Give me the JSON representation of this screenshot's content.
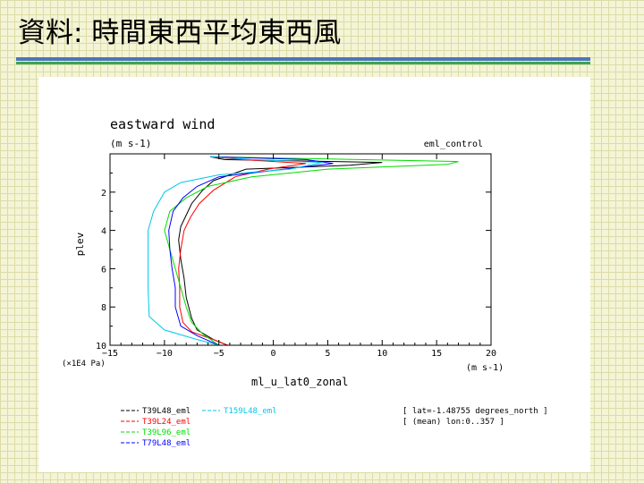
{
  "slide": {
    "title": "資料: 時間東西平均東西風"
  },
  "chart_data": {
    "type": "line",
    "title": "eastward wind",
    "units": "(m s-1)",
    "experiment": "eml_control",
    "xlabel": "ml_u_lat0_zonal",
    "xunits": "(m s-1)",
    "ylabel": "plev",
    "ylabel_scale": "(×1E4 Pa)",
    "xlim": [
      -15,
      20
    ],
    "ylim": [
      10,
      0
    ],
    "xticks": [
      -15,
      -10,
      -5,
      0,
      5,
      10,
      15,
      20
    ],
    "yticks": [
      2,
      4,
      6,
      8,
      10
    ],
    "info": [
      "[ lat=-1.48755 degrees_north ]",
      "[ (mean) lon:0..357 ]"
    ],
    "series": [
      {
        "name": "T39L48_eml",
        "color": "#000000",
        "points": [
          [
            -5.8,
            0.15
          ],
          [
            -4.5,
            0.3
          ],
          [
            10.0,
            0.45
          ],
          [
            7.0,
            0.6
          ],
          [
            -2.5,
            0.8
          ],
          [
            -5.5,
            1.4
          ],
          [
            -6.5,
            1.9
          ],
          [
            -7.5,
            2.6
          ],
          [
            -8.0,
            3.2
          ],
          [
            -8.5,
            3.8
          ],
          [
            -8.7,
            4.5
          ],
          [
            -8.5,
            5.5
          ],
          [
            -8.2,
            6.5
          ],
          [
            -8.0,
            7.5
          ],
          [
            -7.5,
            8.6
          ],
          [
            -7.0,
            9.2
          ],
          [
            -5.5,
            9.7
          ],
          [
            -4.2,
            10.0
          ]
        ]
      },
      {
        "name": "T39L24_eml",
        "color": "#ff0000",
        "points": [
          [
            -5.8,
            0.15
          ],
          [
            -3.0,
            0.3
          ],
          [
            3.0,
            0.5
          ],
          [
            -0.5,
            0.8
          ],
          [
            -3.5,
            1.2
          ],
          [
            -5.5,
            1.9
          ],
          [
            -6.8,
            2.6
          ],
          [
            -7.6,
            3.3
          ],
          [
            -8.2,
            4.0
          ],
          [
            -8.5,
            5.0
          ],
          [
            -8.7,
            6.0
          ],
          [
            -8.6,
            7.0
          ],
          [
            -8.6,
            8.0
          ],
          [
            -8.3,
            8.8
          ],
          [
            -7.5,
            9.3
          ],
          [
            -5.5,
            9.7
          ],
          [
            -4.2,
            10.0
          ]
        ]
      },
      {
        "name": "T39L96_eml",
        "color": "#00dd00",
        "points": [
          [
            -5.8,
            0.15
          ],
          [
            17.0,
            0.4
          ],
          [
            16.0,
            0.55
          ],
          [
            5.0,
            0.8
          ],
          [
            -2.0,
            1.2
          ],
          [
            -6.0,
            1.7
          ],
          [
            -8.0,
            2.3
          ],
          [
            -9.5,
            3.0
          ],
          [
            -10.0,
            4.0
          ],
          [
            -9.5,
            5.0
          ],
          [
            -9.0,
            6.0
          ],
          [
            -8.5,
            7.0
          ],
          [
            -8.0,
            8.0
          ],
          [
            -7.5,
            8.8
          ],
          [
            -6.5,
            9.4
          ],
          [
            -5.0,
            10.0
          ]
        ]
      },
      {
        "name": "T79L48_eml",
        "color": "#0000ff",
        "points": [
          [
            -5.8,
            0.15
          ],
          [
            3.0,
            0.3
          ],
          [
            5.5,
            0.5
          ],
          [
            1.0,
            0.8
          ],
          [
            -5.0,
            1.2
          ],
          [
            -7.0,
            1.7
          ],
          [
            -8.3,
            2.3
          ],
          [
            -9.2,
            3.0
          ],
          [
            -9.6,
            4.0
          ],
          [
            -9.5,
            5.0
          ],
          [
            -9.3,
            6.0
          ],
          [
            -9.0,
            7.0
          ],
          [
            -9.0,
            8.0
          ],
          [
            -8.5,
            9.0
          ],
          [
            -7.0,
            9.5
          ],
          [
            -5.0,
            10.0
          ]
        ]
      },
      {
        "name": "T159L48_eml",
        "color": "#00c8e8",
        "points": [
          [
            -5.8,
            0.15
          ],
          [
            -2.0,
            0.3
          ],
          [
            4.5,
            0.45
          ],
          [
            1.5,
            0.8
          ],
          [
            -5.0,
            1.1
          ],
          [
            -8.5,
            1.5
          ],
          [
            -10.0,
            2.0
          ],
          [
            -11.0,
            3.0
          ],
          [
            -11.5,
            4.0
          ],
          [
            -11.5,
            5.5
          ],
          [
            -11.5,
            7.0
          ],
          [
            -11.4,
            8.5
          ],
          [
            -10.0,
            9.2
          ],
          [
            -7.0,
            9.7
          ],
          [
            -5.0,
            10.0
          ]
        ]
      }
    ]
  }
}
